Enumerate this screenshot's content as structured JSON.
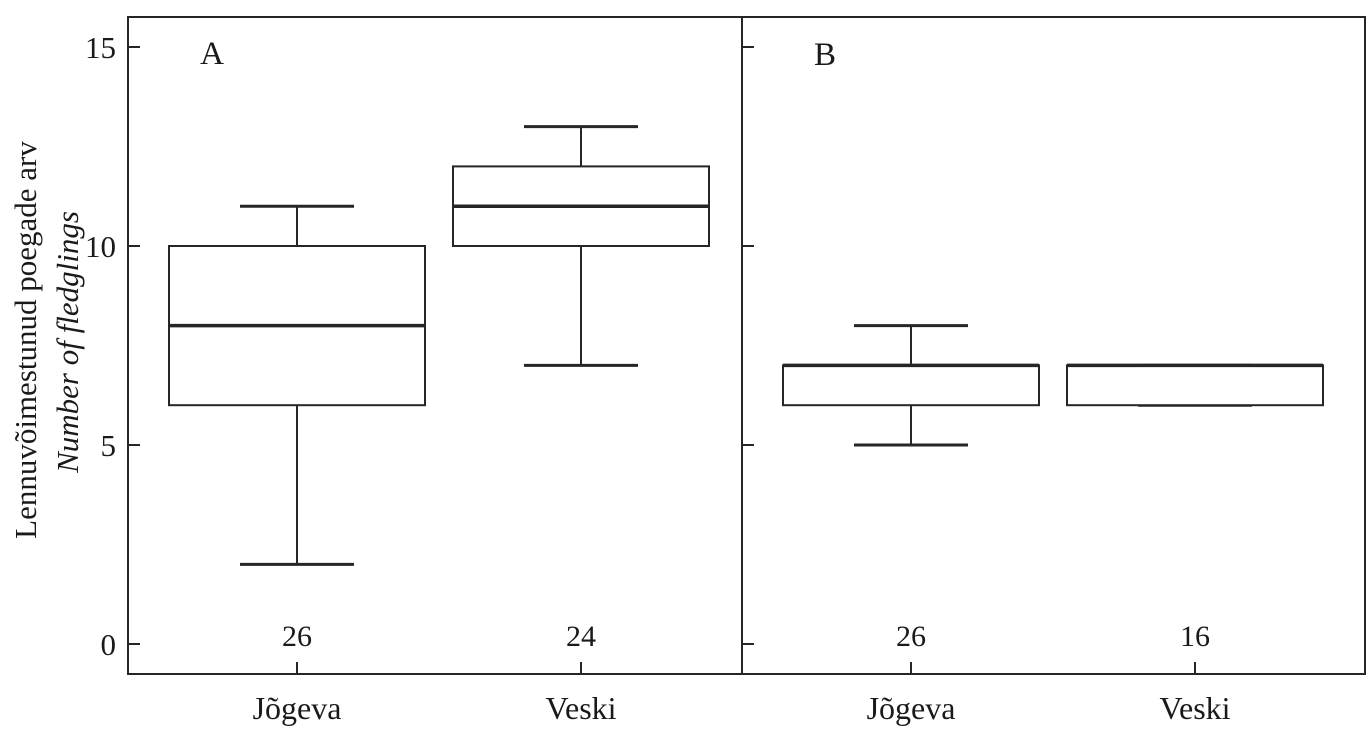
{
  "chart_data": {
    "type": "boxplot",
    "title": "",
    "ylabel_primary": "Lennuvõimestunud poegade arv",
    "ylabel_secondary": "Number of fledglings",
    "yticks": [
      0,
      5,
      10,
      15
    ],
    "ylim": [
      -0.75,
      15.75
    ],
    "legend": "none",
    "grid": false,
    "panels": [
      {
        "label": "A",
        "groups": [
          {
            "category": "Jõgeva",
            "sample_size": "26",
            "min": 2,
            "q1": 6,
            "median": 8,
            "q3": 10,
            "max": 11
          },
          {
            "category": "Veski",
            "sample_size": "24",
            "min": 7,
            "q1": 10,
            "median": 11,
            "q3": 12,
            "max": 13
          }
        ]
      },
      {
        "label": "B",
        "groups": [
          {
            "category": "Jõgeva",
            "sample_size": "26",
            "min": 5,
            "q1": 6,
            "median": 7,
            "q3": 7,
            "max": 8
          },
          {
            "category": "Veski",
            "sample_size": "16",
            "min": 6,
            "q1": 6,
            "median": 7,
            "q3": 7,
            "max": 7
          }
        ]
      }
    ],
    "line_color": "#262626",
    "text_color": "#1a1a1a",
    "background": "#ffffff"
  }
}
